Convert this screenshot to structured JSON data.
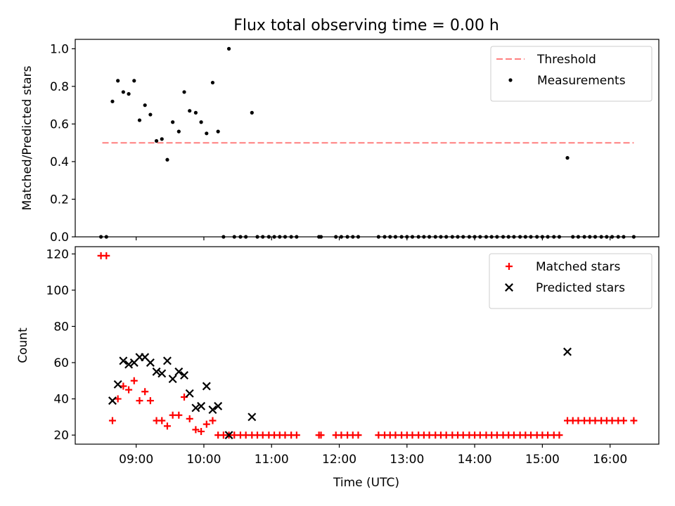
{
  "chart_data": {
    "title": "Flux total observing time = 0.00 h",
    "shared_x": {
      "label": "Time (UTC)",
      "unit": "hours UTC",
      "lim": [
        8.1,
        16.72
      ],
      "ticks": [
        9,
        10,
        11,
        12,
        13,
        14,
        15,
        16
      ],
      "tick_labels": [
        "09:00",
        "10:00",
        "11:00",
        "12:00",
        "13:00",
        "14:00",
        "15:00",
        "16:00"
      ]
    },
    "panels": [
      {
        "type": "scatter",
        "ylabel": "Matched/Predicted stars",
        "ylim": [
          0,
          1.05
        ],
        "yticks": [
          0.0,
          0.2,
          0.4,
          0.6,
          0.8,
          1.0
        ],
        "ytick_labels": [
          "0.0",
          "0.2",
          "0.4",
          "0.6",
          "0.8",
          "1.0"
        ],
        "legend_position": "top-right",
        "threshold": {
          "name": "Threshold",
          "y": 0.5,
          "x_range": [
            8.5,
            16.35
          ],
          "color": "#ff7f7f",
          "style": "dashed"
        },
        "series": [
          {
            "name": "Measurements",
            "color": "#000000",
            "marker": "dot",
            "points": [
              [
                8.48,
                0.0
              ],
              [
                8.56,
                0.0
              ],
              [
                8.65,
                0.72
              ],
              [
                8.73,
                0.83
              ],
              [
                8.81,
                0.77
              ],
              [
                8.89,
                0.76
              ],
              [
                8.97,
                0.83
              ],
              [
                9.05,
                0.62
              ],
              [
                9.13,
                0.7
              ],
              [
                9.21,
                0.65
              ],
              [
                9.3,
                0.51
              ],
              [
                9.38,
                0.52
              ],
              [
                9.46,
                0.41
              ],
              [
                9.54,
                0.61
              ],
              [
                9.63,
                0.56
              ],
              [
                9.71,
                0.77
              ],
              [
                9.79,
                0.67
              ],
              [
                9.88,
                0.66
              ],
              [
                9.96,
                0.61
              ],
              [
                10.04,
                0.55
              ],
              [
                10.13,
                0.82
              ],
              [
                10.21,
                0.56
              ],
              [
                10.29,
                0.0
              ],
              [
                10.37,
                1.0
              ],
              [
                10.45,
                0.0
              ],
              [
                10.54,
                0.0
              ],
              [
                10.62,
                0.0
              ],
              [
                10.71,
                0.66
              ],
              [
                10.79,
                0.0
              ],
              [
                10.87,
                0.0
              ],
              [
                10.96,
                0.0
              ],
              [
                11.04,
                0.0
              ],
              [
                11.12,
                0.0
              ],
              [
                11.2,
                0.0
              ],
              [
                11.29,
                0.0
              ],
              [
                11.37,
                0.0
              ],
              [
                11.7,
                0.0
              ],
              [
                11.73,
                0.0
              ],
              [
                11.95,
                0.0
              ],
              [
                12.03,
                0.0
              ],
              [
                12.12,
                0.0
              ],
              [
                12.2,
                0.0
              ],
              [
                12.28,
                0.0
              ],
              [
                12.58,
                0.0
              ],
              [
                12.67,
                0.0
              ],
              [
                12.75,
                0.0
              ],
              [
                12.83,
                0.0
              ],
              [
                12.92,
                0.0
              ],
              [
                13.0,
                0.0
              ],
              [
                13.08,
                0.0
              ],
              [
                13.17,
                0.0
              ],
              [
                13.25,
                0.0
              ],
              [
                13.33,
                0.0
              ],
              [
                13.42,
                0.0
              ],
              [
                13.5,
                0.0
              ],
              [
                13.58,
                0.0
              ],
              [
                13.67,
                0.0
              ],
              [
                13.75,
                0.0
              ],
              [
                13.83,
                0.0
              ],
              [
                13.92,
                0.0
              ],
              [
                14.0,
                0.0
              ],
              [
                14.08,
                0.0
              ],
              [
                14.17,
                0.0
              ],
              [
                14.25,
                0.0
              ],
              [
                14.33,
                0.0
              ],
              [
                14.42,
                0.0
              ],
              [
                14.5,
                0.0
              ],
              [
                14.58,
                0.0
              ],
              [
                14.67,
                0.0
              ],
              [
                14.75,
                0.0
              ],
              [
                14.83,
                0.0
              ],
              [
                14.92,
                0.0
              ],
              [
                15.0,
                0.0
              ],
              [
                15.08,
                0.0
              ],
              [
                15.17,
                0.0
              ],
              [
                15.25,
                0.0
              ],
              [
                15.37,
                0.42
              ],
              [
                15.45,
                0.0
              ],
              [
                15.53,
                0.0
              ],
              [
                15.62,
                0.0
              ],
              [
                15.7,
                0.0
              ],
              [
                15.78,
                0.0
              ],
              [
                15.87,
                0.0
              ],
              [
                15.95,
                0.0
              ],
              [
                16.03,
                0.0
              ],
              [
                16.12,
                0.0
              ],
              [
                16.2,
                0.0
              ],
              [
                16.35,
                0.0
              ]
            ]
          }
        ]
      },
      {
        "type": "scatter",
        "ylabel": "Count",
        "ylim": [
          15,
          124
        ],
        "yticks": [
          20,
          40,
          60,
          80,
          100,
          120
        ],
        "ytick_labels": [
          "20",
          "40",
          "60",
          "80",
          "100",
          "120"
        ],
        "legend_position": "top-right",
        "series": [
          {
            "name": "Matched stars",
            "color": "#ff0000",
            "marker": "plus",
            "points": [
              [
                8.48,
                119
              ],
              [
                8.56,
                119
              ],
              [
                8.65,
                28
              ],
              [
                8.73,
                40
              ],
              [
                8.81,
                47
              ],
              [
                8.89,
                45
              ],
              [
                8.97,
                50
              ],
              [
                9.05,
                39
              ],
              [
                9.13,
                44
              ],
              [
                9.21,
                39
              ],
              [
                9.3,
                28
              ],
              [
                9.38,
                28
              ],
              [
                9.46,
                25
              ],
              [
                9.54,
                31
              ],
              [
                9.63,
                31
              ],
              [
                9.71,
                41
              ],
              [
                9.79,
                29
              ],
              [
                9.88,
                23
              ],
              [
                9.96,
                22
              ],
              [
                10.04,
                26
              ],
              [
                10.13,
                28
              ],
              [
                10.21,
                20
              ],
              [
                10.29,
                20
              ],
              [
                10.37,
                20
              ],
              [
                10.45,
                20
              ],
              [
                10.54,
                20
              ],
              [
                10.62,
                20
              ],
              [
                10.71,
                20
              ],
              [
                10.79,
                20
              ],
              [
                10.87,
                20
              ],
              [
                10.96,
                20
              ],
              [
                11.04,
                20
              ],
              [
                11.12,
                20
              ],
              [
                11.2,
                20
              ],
              [
                11.29,
                20
              ],
              [
                11.37,
                20
              ],
              [
                11.7,
                20
              ],
              [
                11.73,
                20
              ],
              [
                11.95,
                20
              ],
              [
                12.03,
                20
              ],
              [
                12.12,
                20
              ],
              [
                12.2,
                20
              ],
              [
                12.28,
                20
              ],
              [
                12.58,
                20
              ],
              [
                12.67,
                20
              ],
              [
                12.75,
                20
              ],
              [
                12.83,
                20
              ],
              [
                12.92,
                20
              ],
              [
                13.0,
                20
              ],
              [
                13.08,
                20
              ],
              [
                13.17,
                20
              ],
              [
                13.25,
                20
              ],
              [
                13.33,
                20
              ],
              [
                13.42,
                20
              ],
              [
                13.5,
                20
              ],
              [
                13.58,
                20
              ],
              [
                13.67,
                20
              ],
              [
                13.75,
                20
              ],
              [
                13.83,
                20
              ],
              [
                13.92,
                20
              ],
              [
                14.0,
                20
              ],
              [
                14.08,
                20
              ],
              [
                14.17,
                20
              ],
              [
                14.25,
                20
              ],
              [
                14.33,
                20
              ],
              [
                14.42,
                20
              ],
              [
                14.5,
                20
              ],
              [
                14.58,
                20
              ],
              [
                14.67,
                20
              ],
              [
                14.75,
                20
              ],
              [
                14.83,
                20
              ],
              [
                14.92,
                20
              ],
              [
                15.0,
                20
              ],
              [
                15.08,
                20
              ],
              [
                15.17,
                20
              ],
              [
                15.25,
                20
              ],
              [
                15.37,
                28
              ],
              [
                15.45,
                28
              ],
              [
                15.53,
                28
              ],
              [
                15.62,
                28
              ],
              [
                15.7,
                28
              ],
              [
                15.78,
                28
              ],
              [
                15.87,
                28
              ],
              [
                15.95,
                28
              ],
              [
                16.03,
                28
              ],
              [
                16.12,
                28
              ],
              [
                16.2,
                28
              ],
              [
                16.35,
                28
              ]
            ]
          },
          {
            "name": "Predicted stars",
            "color": "#000000",
            "marker": "x",
            "points": [
              [
                8.65,
                39
              ],
              [
                8.73,
                48
              ],
              [
                8.81,
                61
              ],
              [
                8.89,
                59
              ],
              [
                8.97,
                60
              ],
              [
                9.05,
                63
              ],
              [
                9.13,
                63
              ],
              [
                9.21,
                60
              ],
              [
                9.3,
                55
              ],
              [
                9.38,
                54
              ],
              [
                9.46,
                61
              ],
              [
                9.54,
                51
              ],
              [
                9.63,
                55
              ],
              [
                9.71,
                53
              ],
              [
                9.79,
                43
              ],
              [
                9.88,
                35
              ],
              [
                9.96,
                36
              ],
              [
                10.04,
                47
              ],
              [
                10.13,
                34
              ],
              [
                10.21,
                36
              ],
              [
                10.37,
                20
              ],
              [
                10.71,
                30
              ],
              [
                15.37,
                66
              ]
            ]
          }
        ]
      }
    ]
  }
}
